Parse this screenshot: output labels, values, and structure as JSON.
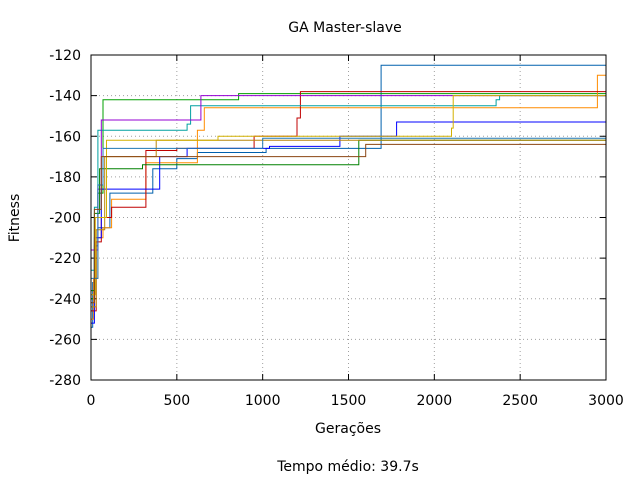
{
  "chart_data": {
    "type": "line",
    "title": "GA Master-slave",
    "xlabel": "Gerações",
    "ylabel": "Fitness",
    "footer": "Tempo médio: 39.7s",
    "xlim": [
      0,
      3000
    ],
    "ylim": [
      -280,
      -120
    ],
    "xticks": [
      0,
      500,
      1000,
      1500,
      2000,
      2500,
      3000
    ],
    "yticks": [
      -280,
      -260,
      -240,
      -220,
      -200,
      -180,
      -160,
      -140,
      -120
    ],
    "grid": true,
    "step": true,
    "series": [
      {
        "color": "#0060ad",
        "points": [
          [
            0,
            -254
          ],
          [
            10,
            -232
          ],
          [
            20,
            -214
          ],
          [
            40,
            -205
          ],
          [
            110,
            -188
          ],
          [
            360,
            -176
          ],
          [
            500,
            -171
          ],
          [
            620,
            -168
          ],
          [
            1020,
            -166
          ],
          [
            1690,
            -125
          ],
          [
            3000,
            -125
          ]
        ]
      },
      {
        "color": "#00a000",
        "points": [
          [
            0,
            -240
          ],
          [
            20,
            -200
          ],
          [
            40,
            -188
          ],
          [
            70,
            -142
          ],
          [
            860,
            -139
          ],
          [
            3000,
            -139
          ]
        ]
      },
      {
        "color": "#ff8c00",
        "points": [
          [
            0,
            -250
          ],
          [
            15,
            -230
          ],
          [
            40,
            -210
          ],
          [
            70,
            -205
          ],
          [
            120,
            -191
          ],
          [
            320,
            -173
          ],
          [
            620,
            -157
          ],
          [
            660,
            -146
          ],
          [
            2940,
            -146
          ],
          [
            2950,
            -130
          ],
          [
            3000,
            -130
          ]
        ]
      },
      {
        "color": "#c00000",
        "points": [
          [
            0,
            -246
          ],
          [
            30,
            -212
          ],
          [
            60,
            -200
          ],
          [
            120,
            -195
          ],
          [
            320,
            -167
          ],
          [
            500,
            -166
          ],
          [
            950,
            -160
          ],
          [
            1200,
            -151
          ],
          [
            1220,
            -138
          ],
          [
            3000,
            -138
          ]
        ]
      },
      {
        "color": "#00a0a0",
        "points": [
          [
            0,
            -226
          ],
          [
            20,
            -195
          ],
          [
            40,
            -157
          ],
          [
            100,
            -157
          ],
          [
            560,
            -154
          ],
          [
            580,
            -145
          ],
          [
            2360,
            -142
          ],
          [
            2380,
            -140
          ],
          [
            3000,
            -140
          ]
        ]
      },
      {
        "color": "#9400d3",
        "points": [
          [
            0,
            -216
          ],
          [
            40,
            -186
          ],
          [
            60,
            -152
          ],
          [
            640,
            -140
          ],
          [
            3000,
            -140
          ]
        ]
      },
      {
        "color": "#0000ff",
        "points": [
          [
            0,
            -252
          ],
          [
            20,
            -210
          ],
          [
            60,
            -186
          ],
          [
            160,
            -186
          ],
          [
            400,
            -170
          ],
          [
            560,
            -166
          ],
          [
            1040,
            -165
          ],
          [
            1450,
            -160
          ],
          [
            1780,
            -153
          ],
          [
            3000,
            -153
          ]
        ]
      },
      {
        "color": "#008000",
        "points": [
          [
            0,
            -236
          ],
          [
            20,
            -198
          ],
          [
            50,
            -176
          ],
          [
            300,
            -174
          ],
          [
            1560,
            -162
          ],
          [
            3000,
            -161
          ]
        ]
      },
      {
        "color": "#b8860b",
        "points": [
          [
            0,
            -244
          ],
          [
            30,
            -206
          ],
          [
            80,
            -170
          ],
          [
            380,
            -162
          ],
          [
            1600,
            -162
          ],
          [
            3000,
            -164
          ]
        ]
      },
      {
        "color": "#d2b000",
        "points": [
          [
            0,
            -238
          ],
          [
            25,
            -200
          ],
          [
            90,
            -162
          ],
          [
            740,
            -160
          ],
          [
            2100,
            -156
          ],
          [
            2110,
            -140
          ],
          [
            3000,
            -140
          ]
        ]
      },
      {
        "color": "#1f77b4",
        "points": [
          [
            0,
            -230
          ],
          [
            40,
            -184
          ],
          [
            70,
            -166
          ],
          [
            1000,
            -161
          ],
          [
            1700,
            -161
          ],
          [
            3000,
            -161
          ]
        ]
      },
      {
        "color": "#8b4513",
        "points": [
          [
            0,
            -242
          ],
          [
            20,
            -196
          ],
          [
            60,
            -170
          ],
          [
            1600,
            -164
          ],
          [
            3000,
            -164
          ]
        ]
      }
    ]
  }
}
